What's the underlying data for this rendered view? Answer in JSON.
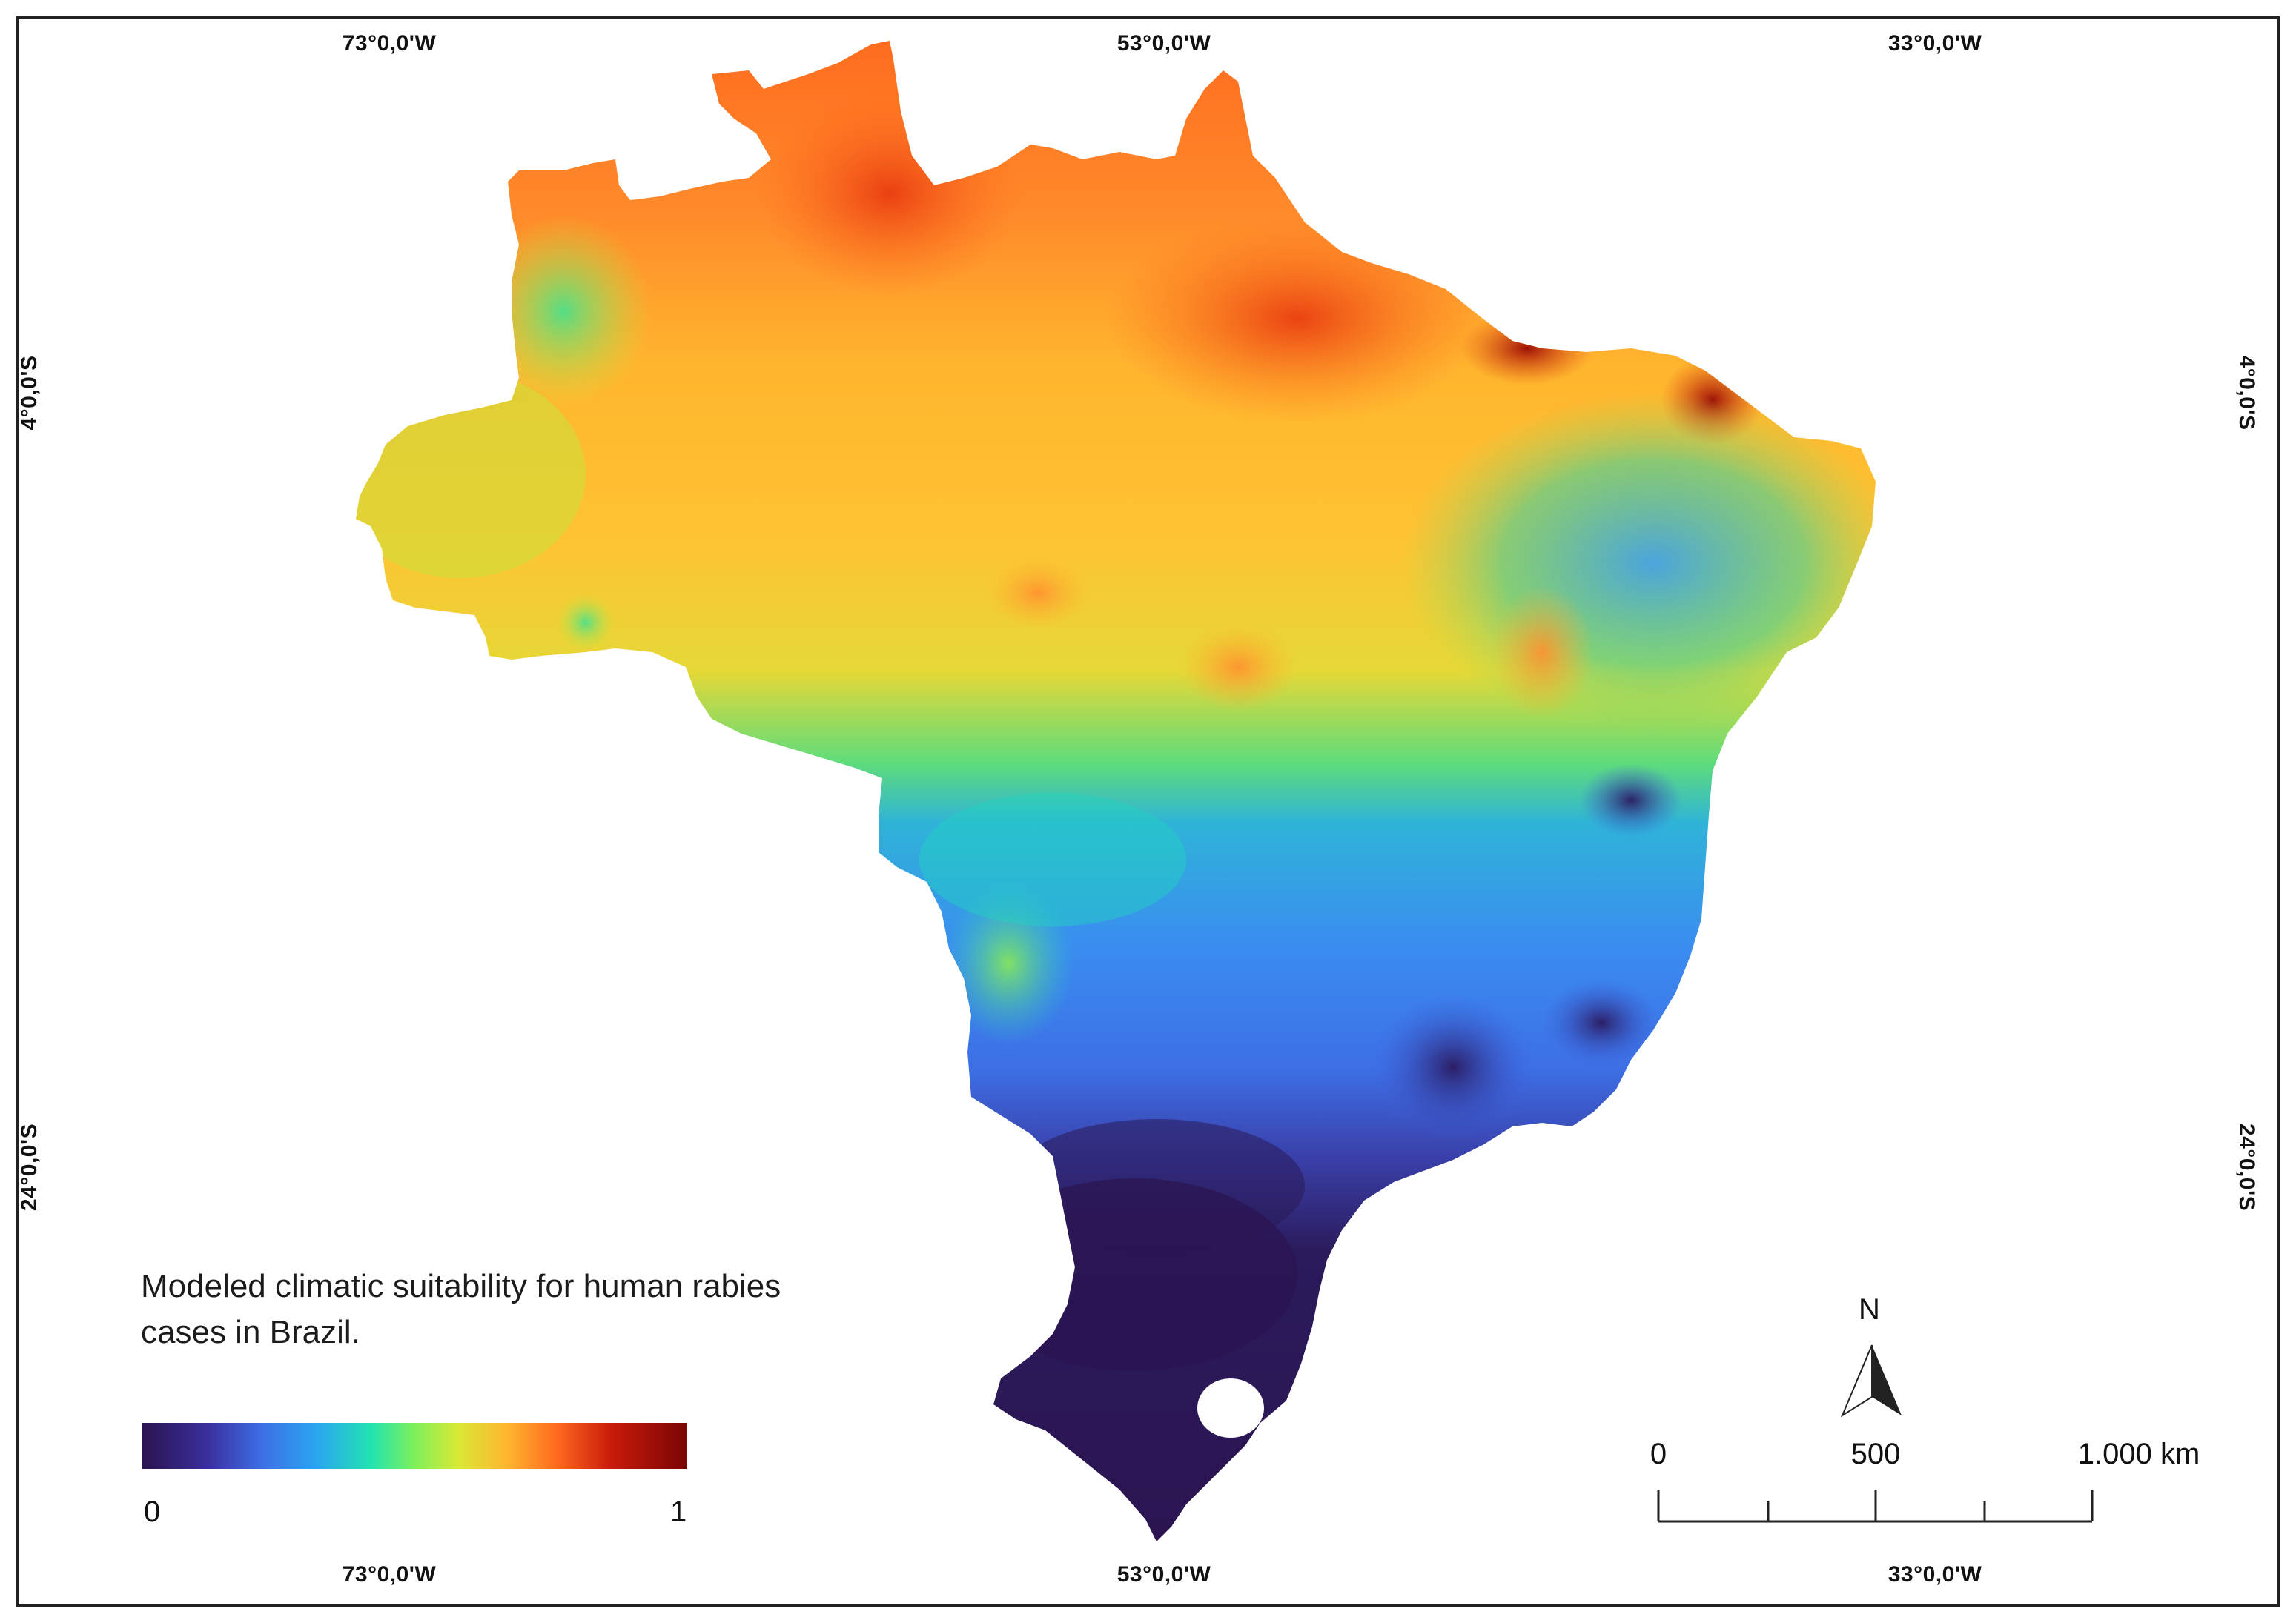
{
  "map": {
    "title": "Modeled climatic suitability for human rabies cases in Brazil.",
    "graticule": {
      "longitudes": [
        "73°0,0'W",
        "53°0,0'W",
        "33°0,0'W"
      ],
      "latitudes": [
        "4°0,0'S",
        "24°0,0'S"
      ]
    },
    "legend": {
      "min_label": "0",
      "max_label": "1",
      "colors": [
        "#2b1450",
        "#3a2f9e",
        "#3d6fe6",
        "#2aa6f0",
        "#22e3b0",
        "#7ef05a",
        "#d9e835",
        "#ffb52e",
        "#ff6a1f",
        "#c91b0a",
        "#7a0505"
      ]
    },
    "north_arrow": {
      "label": "N"
    },
    "scale_bar": {
      "labels": [
        "0",
        "500",
        "1.000 km"
      ]
    },
    "colors": {
      "frame": "#222222",
      "background": "#ffffff"
    }
  }
}
